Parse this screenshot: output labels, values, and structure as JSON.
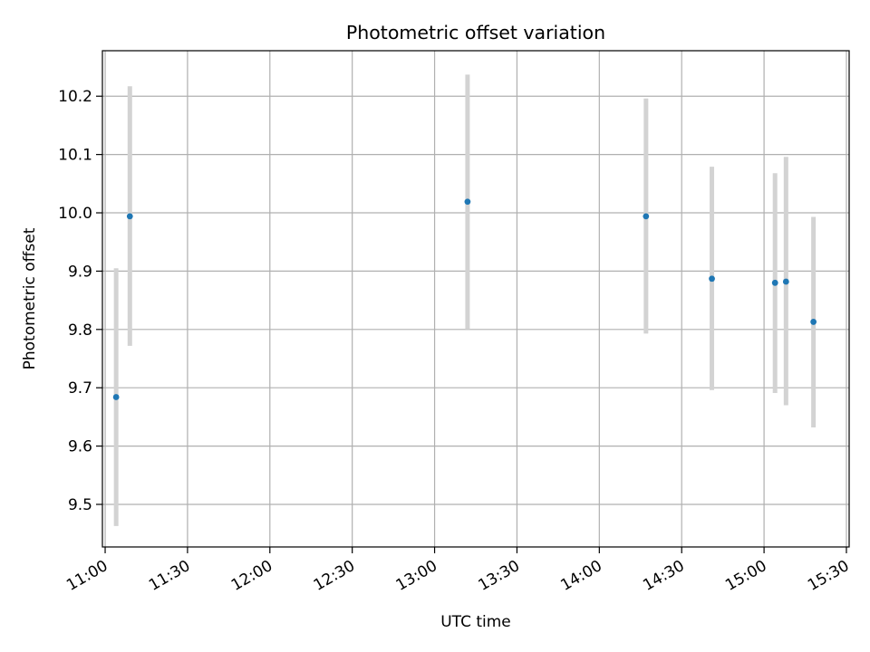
{
  "chart_data": {
    "type": "scatter",
    "title": "Photometric offset variation",
    "xlabel": "UTC time",
    "ylabel": "Photometric offset",
    "x_unit": "time-of-day",
    "xlim": [
      "10:59",
      "15:31"
    ],
    "ylim": [
      9.427,
      10.278
    ],
    "x_ticks": [
      "11:00",
      "11:30",
      "12:00",
      "12:30",
      "13:00",
      "13:30",
      "14:00",
      "14:30",
      "15:00",
      "15:30"
    ],
    "y_ticks": [
      9.5,
      9.6,
      9.7,
      9.8,
      9.9,
      10.0,
      10.1,
      10.2
    ],
    "y_tick_labels": [
      "9.5",
      "9.6",
      "9.7",
      "9.8",
      "9.9",
      "10.0",
      "10.1",
      "10.2"
    ],
    "grid": true,
    "legend": "none",
    "point_color": "#1f77b4",
    "errorbar_color": "#d3d3d3",
    "points": [
      {
        "x": "11:04",
        "y": 9.684,
        "err_low": 9.463,
        "err_high": 9.905
      },
      {
        "x": "11:09",
        "y": 9.994,
        "err_low": 9.772,
        "err_high": 10.217
      },
      {
        "x": "13:12",
        "y": 10.019,
        "err_low": 9.8,
        "err_high": 10.237
      },
      {
        "x": "14:17",
        "y": 9.994,
        "err_low": 9.793,
        "err_high": 10.196
      },
      {
        "x": "14:41",
        "y": 9.887,
        "err_low": 9.696,
        "err_high": 10.079
      },
      {
        "x": "15:04",
        "y": 9.88,
        "err_low": 9.691,
        "err_high": 10.068
      },
      {
        "x": "15:08",
        "y": 9.882,
        "err_low": 9.67,
        "err_high": 10.096
      },
      {
        "x": "15:18",
        "y": 9.813,
        "err_low": 9.632,
        "err_high": 9.993
      }
    ]
  }
}
